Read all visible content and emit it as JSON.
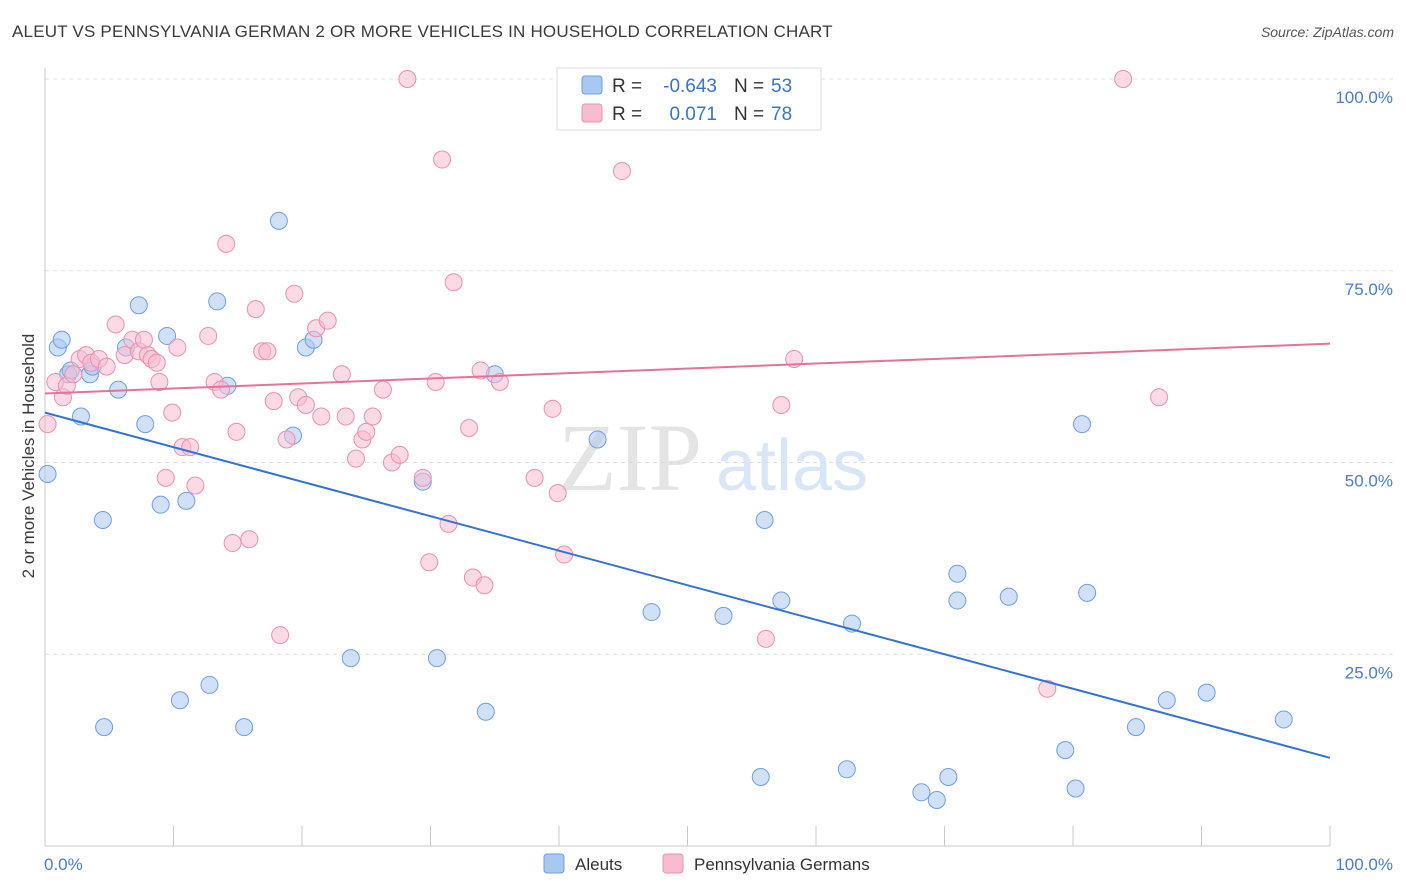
{
  "header": {
    "title": "ALEUT VS PENNSYLVANIA GERMAN 2 OR MORE VEHICLES IN HOUSEHOLD CORRELATION CHART",
    "source": "Source: ZipAtlas.com"
  },
  "watermark": {
    "zip": "ZIP",
    "atlas": "atlas"
  },
  "stats": [
    {
      "r_label": "R =",
      "r_value": "-0.643",
      "n_label": "N =",
      "n_value": "53",
      "color": "#a9c8f0",
      "stroke": "#6f9fe0"
    },
    {
      "r_label": "R =",
      "r_value": "0.071",
      "n_label": "N =",
      "n_value": "78",
      "color": "#f7bcd0",
      "stroke": "#ec8fb0"
    }
  ],
  "chart_data": {
    "type": "scatter",
    "ylabel": "2 or more Vehicles in Household",
    "xlim": [
      0,
      100
    ],
    "ylim": [
      0,
      100
    ],
    "x_tick_labels": {
      "min": "0.0%",
      "max": "100.0%"
    },
    "y_ticks": [
      {
        "value": 25,
        "label": "25.0%"
      },
      {
        "value": 50,
        "label": "50.0%"
      },
      {
        "value": 75,
        "label": "75.0%"
      },
      {
        "value": 100,
        "label": "100.0%"
      }
    ],
    "grid": true,
    "legend_position": "bottom",
    "series": [
      {
        "name": "Aleuts",
        "color": "#a9c8f0",
        "stroke": "#6f9fe0",
        "line_color": "#3573d1",
        "trend": {
          "x": [
            0,
            100
          ],
          "y": [
            56.5,
            11.5
          ]
        },
        "points": [
          [
            0.2,
            48.5
          ],
          [
            1.0,
            65.0
          ],
          [
            1.3,
            66.0
          ],
          [
            1.8,
            61.5
          ],
          [
            2.0,
            62.0
          ],
          [
            2.8,
            56.0
          ],
          [
            3.5,
            61.5
          ],
          [
            3.7,
            62.5
          ],
          [
            4.5,
            42.5
          ],
          [
            4.6,
            15.5
          ],
          [
            5.7,
            59.5
          ],
          [
            6.3,
            65.0
          ],
          [
            7.3,
            70.5
          ],
          [
            7.8,
            55.0
          ],
          [
            9.0,
            44.5
          ],
          [
            9.5,
            66.5
          ],
          [
            10.5,
            19.0
          ],
          [
            11.0,
            45.0
          ],
          [
            12.8,
            21.0
          ],
          [
            13.4,
            71.0
          ],
          [
            14.2,
            60.0
          ],
          [
            15.5,
            15.5
          ],
          [
            18.2,
            81.5
          ],
          [
            19.3,
            53.5
          ],
          [
            20.3,
            65.0
          ],
          [
            20.9,
            66.0
          ],
          [
            23.8,
            24.5
          ],
          [
            29.4,
            47.5
          ],
          [
            30.5,
            24.5
          ],
          [
            34.3,
            17.5
          ],
          [
            35.0,
            61.5
          ],
          [
            43.0,
            53.0
          ],
          [
            47.2,
            30.5
          ],
          [
            52.8,
            30.0
          ],
          [
            55.7,
            9.0
          ],
          [
            56.0,
            42.5
          ],
          [
            57.3,
            32.0
          ],
          [
            62.4,
            10.0
          ],
          [
            62.8,
            29.0
          ],
          [
            68.2,
            7.0
          ],
          [
            69.4,
            6.0
          ],
          [
            70.3,
            9.0
          ],
          [
            71.0,
            35.5
          ],
          [
            71.0,
            32.0
          ],
          [
            75.0,
            32.5
          ],
          [
            79.4,
            12.5
          ],
          [
            80.2,
            7.5
          ],
          [
            80.7,
            55.0
          ],
          [
            81.1,
            33.0
          ],
          [
            84.9,
            15.5
          ],
          [
            87.3,
            19.0
          ],
          [
            90.4,
            20.0
          ],
          [
            96.4,
            16.5
          ]
        ]
      },
      {
        "name": "Pennsylvania Germans",
        "color": "#f7bcd0",
        "stroke": "#ec8fb0",
        "line_color": "#e3739b",
        "trend": {
          "x": [
            0,
            100
          ],
          "y": [
            59.0,
            65.5
          ]
        },
        "points": [
          [
            0.2,
            55.0
          ],
          [
            0.8,
            60.5
          ],
          [
            1.4,
            58.5
          ],
          [
            1.7,
            60.0
          ],
          [
            2.2,
            61.5
          ],
          [
            2.7,
            63.5
          ],
          [
            3.2,
            64.0
          ],
          [
            3.6,
            63.0
          ],
          [
            4.2,
            63.5
          ],
          [
            4.8,
            62.5
          ],
          [
            5.5,
            68.0
          ],
          [
            6.2,
            64.0
          ],
          [
            6.8,
            66.0
          ],
          [
            7.3,
            64.5
          ],
          [
            7.7,
            66.0
          ],
          [
            8.0,
            64.0
          ],
          [
            8.3,
            63.5
          ],
          [
            8.7,
            63.0
          ],
          [
            8.9,
            60.5
          ],
          [
            9.4,
            48.0
          ],
          [
            9.9,
            56.5
          ],
          [
            10.3,
            65.0
          ],
          [
            10.7,
            52.0
          ],
          [
            11.3,
            52.0
          ],
          [
            11.7,
            47.0
          ],
          [
            12.7,
            66.5
          ],
          [
            13.2,
            60.5
          ],
          [
            13.7,
            59.5
          ],
          [
            14.1,
            78.5
          ],
          [
            14.6,
            39.5
          ],
          [
            14.9,
            54.0
          ],
          [
            15.9,
            40.0
          ],
          [
            16.4,
            70.0
          ],
          [
            16.9,
            64.5
          ],
          [
            17.3,
            64.5
          ],
          [
            17.8,
            58.0
          ],
          [
            18.3,
            27.5
          ],
          [
            18.8,
            53.0
          ],
          [
            19.4,
            72.0
          ],
          [
            19.7,
            58.5
          ],
          [
            20.3,
            57.5
          ],
          [
            21.1,
            67.5
          ],
          [
            21.5,
            56.0
          ],
          [
            22.0,
            68.5
          ],
          [
            23.1,
            61.5
          ],
          [
            23.4,
            56.0
          ],
          [
            24.2,
            50.5
          ],
          [
            24.7,
            53.0
          ],
          [
            25.0,
            54.0
          ],
          [
            25.5,
            56.0
          ],
          [
            26.3,
            59.5
          ],
          [
            27.0,
            50.0
          ],
          [
            27.6,
            51.0
          ],
          [
            28.2,
            100.0
          ],
          [
            29.4,
            48.0
          ],
          [
            29.9,
            37.0
          ],
          [
            30.4,
            60.5
          ],
          [
            30.9,
            89.5
          ],
          [
            31.4,
            42.0
          ],
          [
            31.8,
            73.5
          ],
          [
            33.0,
            54.5
          ],
          [
            33.3,
            35.0
          ],
          [
            33.9,
            62.0
          ],
          [
            34.2,
            34.0
          ],
          [
            35.4,
            60.5
          ],
          [
            38.1,
            48.0
          ],
          [
            39.5,
            57.0
          ],
          [
            39.9,
            46.0
          ],
          [
            40.4,
            38.0
          ],
          [
            44.9,
            88.0
          ],
          [
            49.7,
            100.0
          ],
          [
            51.2,
            100.0
          ],
          [
            56.1,
            27.0
          ],
          [
            57.3,
            57.5
          ],
          [
            58.3,
            63.5
          ],
          [
            78.0,
            20.5
          ],
          [
            83.9,
            100.0
          ],
          [
            86.7,
            58.5
          ]
        ]
      }
    ]
  }
}
